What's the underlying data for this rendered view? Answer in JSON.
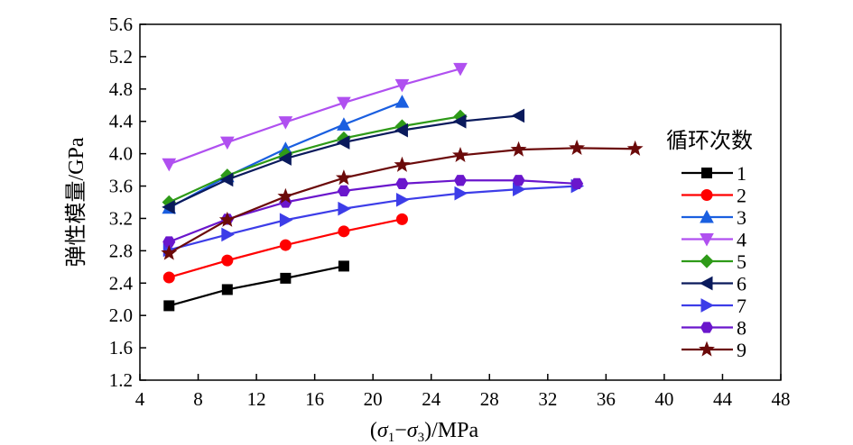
{
  "chart_data": {
    "type": "line",
    "xlabel": "(σ1−σ3)/MPa",
    "ylabel": "弹性模量/GPa",
    "xlim": [
      4,
      48
    ],
    "ylim": [
      1.2,
      5.6
    ],
    "xticks": [
      4,
      8,
      12,
      16,
      20,
      24,
      28,
      32,
      36,
      40,
      44,
      48
    ],
    "yticks": [
      1.2,
      1.6,
      2.0,
      2.4,
      2.8,
      3.2,
      3.6,
      4.0,
      4.4,
      4.8,
      5.2,
      5.6
    ],
    "legend_title": "循环次数",
    "legend_position": "right",
    "grid": false,
    "series": [
      {
        "name": "1",
        "color": "#000000",
        "marker": "square",
        "x": [
          6,
          10,
          14,
          18
        ],
        "y": [
          2.12,
          2.32,
          2.46,
          2.61
        ]
      },
      {
        "name": "2",
        "color": "#ff0000",
        "marker": "circle",
        "x": [
          6,
          10,
          14,
          18,
          22
        ],
        "y": [
          2.47,
          2.68,
          2.87,
          3.04,
          3.19
        ]
      },
      {
        "name": "3",
        "color": "#1a5fe0",
        "marker": "triangle-up",
        "x": [
          6,
          10,
          14,
          18,
          22
        ],
        "y": [
          3.33,
          3.72,
          4.06,
          4.36,
          4.64
        ]
      },
      {
        "name": "4",
        "color": "#b050f0",
        "marker": "triangle-down",
        "x": [
          6,
          10,
          14,
          18,
          22,
          26
        ],
        "y": [
          3.87,
          4.14,
          4.39,
          4.63,
          4.85,
          5.05
        ]
      },
      {
        "name": "5",
        "color": "#2e9a18",
        "marker": "diamond",
        "x": [
          6,
          10,
          14,
          18,
          22,
          26
        ],
        "y": [
          3.4,
          3.73,
          3.99,
          4.19,
          4.34,
          4.46
        ]
      },
      {
        "name": "6",
        "color": "#0a1a5c",
        "marker": "triangle-left",
        "x": [
          6,
          10,
          14,
          18,
          22,
          26,
          30
        ],
        "y": [
          3.34,
          3.68,
          3.94,
          4.14,
          4.29,
          4.4,
          4.47
        ]
      },
      {
        "name": "7",
        "color": "#3d3de8",
        "marker": "triangle-right",
        "x": [
          6,
          10,
          14,
          18,
          22,
          26,
          30,
          34
        ],
        "y": [
          2.81,
          3.0,
          3.18,
          3.32,
          3.43,
          3.51,
          3.56,
          3.6
        ]
      },
      {
        "name": "8",
        "color": "#6a16cc",
        "marker": "hexagon",
        "x": [
          6,
          10,
          14,
          18,
          22,
          26,
          30,
          34
        ],
        "y": [
          2.91,
          3.19,
          3.4,
          3.54,
          3.63,
          3.67,
          3.67,
          3.63
        ]
      },
      {
        "name": "9",
        "color": "#6b0a0a",
        "marker": "star",
        "x": [
          6,
          10,
          14,
          18,
          22,
          26,
          30,
          34,
          38
        ],
        "y": [
          2.77,
          3.18,
          3.47,
          3.7,
          3.86,
          3.98,
          4.05,
          4.07,
          4.06
        ]
      }
    ]
  }
}
